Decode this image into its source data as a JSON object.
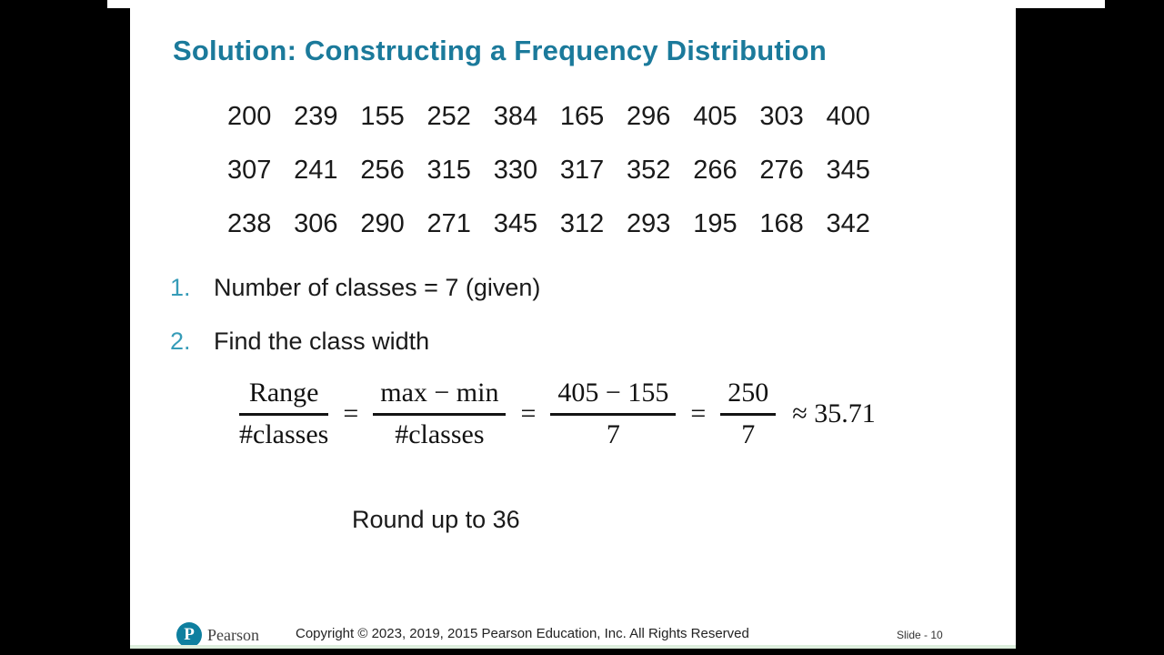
{
  "slide": {
    "title": "Solution: Constructing a Frequency Distribution",
    "data_rows": [
      [
        "200",
        "239",
        "155",
        "252",
        "384",
        "165",
        "296",
        "405",
        "303",
        "400"
      ],
      [
        "307",
        "241",
        "256",
        "315",
        "330",
        "317",
        "352",
        "266",
        "276",
        "345"
      ],
      [
        "238",
        "306",
        "290",
        "271",
        "345",
        "312",
        "293",
        "195",
        "168",
        "342"
      ]
    ],
    "steps": [
      {
        "number": "1.",
        "text": "Number of classes = 7 (given)"
      },
      {
        "number": "2.",
        "text": "Find the class width"
      }
    ],
    "formula": {
      "fractions": [
        {
          "num": "Range",
          "den": "#classes"
        },
        {
          "num": "max − min",
          "den": "#classes"
        },
        {
          "num": "405 − 155",
          "den": "7"
        },
        {
          "num": "250",
          "den": "7"
        }
      ],
      "equals": "=",
      "result": "≈ 35.71"
    },
    "round_note": "Round up to 36",
    "footer": {
      "logo_letter": "P",
      "brand": "Pearson",
      "copyright": "Copyright © 2023, 2019, 2015 Pearson Education, Inc. All Rights Reserved",
      "slide_number": "Slide - 10"
    },
    "colors": {
      "title_teal": "#1B7A9B",
      "step_number_teal": "#369CB8",
      "logo_teal": "#0E7F9F",
      "body_text": "#1a1a1a",
      "letterbox": "#000000"
    }
  }
}
